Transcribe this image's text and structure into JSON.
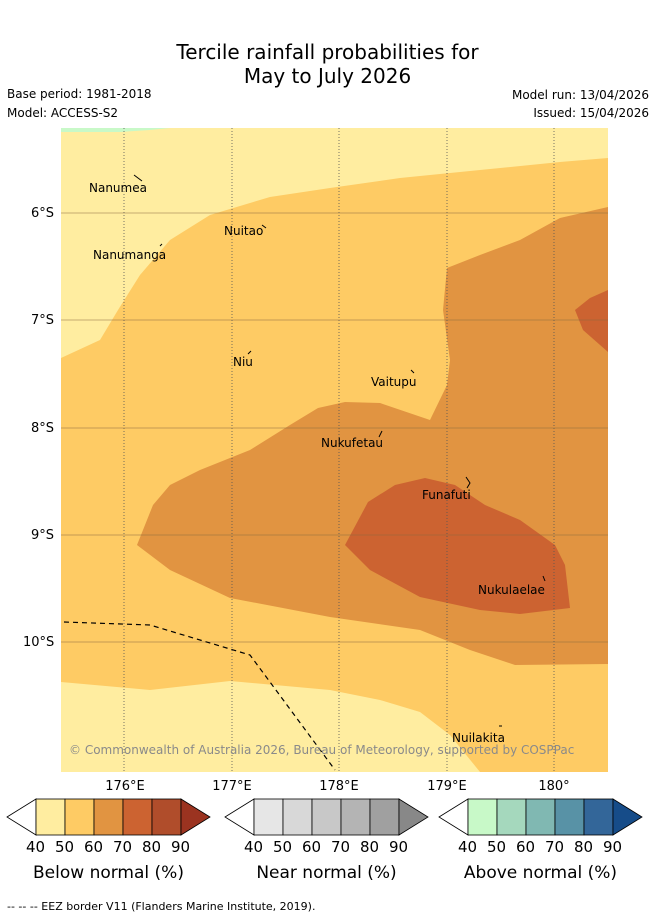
{
  "title": {
    "line1": "Tercile rainfall probabilities for",
    "line2": "May to July 2026"
  },
  "meta": {
    "base_period": "Base period: 1981-2018",
    "model": "Model: ACCESS-S2",
    "model_run": "Model run: 13/04/2026",
    "issued": "Issued: 15/04/2026"
  },
  "map": {
    "lat_labels": [
      "6°S",
      "7°S",
      "8°S",
      "9°S",
      "10°S"
    ],
    "lon_labels": [
      "176°E",
      "177°E",
      "178°E",
      "179°E",
      "180°"
    ],
    "places": [
      "Nanumea",
      "Nuitao",
      "Nanumanga",
      "Niu",
      "Vaitupu",
      "Nukufetau",
      "Funafuti",
      "Nukulaelae",
      "Nuilakita"
    ],
    "copyright": "© Commonwealth of Australia 2026, Bureau of Meteorology, supported by COSPPac"
  },
  "colorbars": [
    {
      "title": "Below normal (%)",
      "ticks": [
        "40",
        "50",
        "60",
        "70",
        "80",
        "90"
      ],
      "colors": [
        "#ffffff",
        "#ffeda0",
        "#fecb64",
        "#e19441",
        "#cc6331",
        "#b04d2b",
        "#9b3320"
      ]
    },
    {
      "title": "Near normal (%)",
      "ticks": [
        "40",
        "50",
        "60",
        "70",
        "80",
        "90"
      ],
      "colors": [
        "#ffffff",
        "#e6e6e6",
        "#d8d8d8",
        "#c8c8c8",
        "#b4b4b4",
        "#a0a0a0",
        "#888888"
      ]
    },
    {
      "title": "Above normal (%)",
      "ticks": [
        "40",
        "50",
        "60",
        "70",
        "80",
        "90"
      ],
      "colors": [
        "#ffffff",
        "#c8f9c8",
        "#a5d8bd",
        "#80b8b2",
        "#5892a6",
        "#336699",
        "#164c89"
      ]
    }
  ],
  "footer": "-- -- -- EEZ border V11 (Flanders Marine Institute, 2019)."
}
